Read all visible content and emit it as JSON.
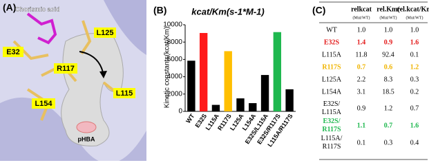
{
  "panel_a": {
    "label": "(A)",
    "labels": [
      "Chorismic acid",
      "L125",
      "E32",
      "R117",
      "L115",
      "L154",
      "pHBA"
    ]
  },
  "chart_data": {
    "type": "bar",
    "label": "(B)",
    "title": "kcat/Km(s-1*M-1)",
    "y_label": "Kinetic constants(kcat/Km)",
    "categories": [
      "WT",
      "E32S",
      "L115A",
      "R117S",
      "L125A",
      "L154A",
      "E32S/L115A",
      "E32S/R117S",
      "L115A/R117S"
    ],
    "values": [
      5850,
      9050,
      750,
      6950,
      1500,
      950,
      4200,
      9150,
      2550
    ],
    "colors": [
      "#000000",
      "#ff1a1a",
      "#000000",
      "#ffbf00",
      "#000000",
      "#000000",
      "#000000",
      "#1fb84f",
      "#000000"
    ],
    "ylim": [
      0,
      10000
    ],
    "yticks": [
      0,
      2000,
      4000,
      6000,
      8000,
      10000
    ]
  },
  "table": {
    "label": "(C)",
    "headers": [
      {
        "title": "relkcat",
        "sub": "(Mut/WT)"
      },
      {
        "title": "rel.Km(",
        "sub": "(Mut/WT)"
      },
      {
        "title": "rel.kcat/Km",
        "sub": "(Mut/WT)"
      }
    ],
    "rows": [
      {
        "cells": [
          "WT",
          "1.0",
          "1.0",
          "1.0"
        ],
        "color": "#000000"
      },
      {
        "cells": [
          "E32S",
          "1.4",
          "0.9",
          "1.6"
        ],
        "color": "#e31b1b"
      },
      {
        "cells": [
          "L115A",
          "11.8",
          "92.4",
          "0.1"
        ],
        "color": "#000000"
      },
      {
        "cells": [
          "R117S",
          "0.7",
          "0.6",
          "1.2"
        ],
        "color": "#f0b400"
      },
      {
        "cells": [
          "L125A",
          "2.2",
          "8.3",
          "0.3"
        ],
        "color": "#000000"
      },
      {
        "cells": [
          "L154A",
          "3.1",
          "18.5",
          "0.2"
        ],
        "color": "#000000"
      },
      {
        "cells": [
          "E32S/L115A",
          "0.9",
          "1.2",
          "0.7"
        ],
        "color": "#000000"
      },
      {
        "cells": [
          "E32S/R117S",
          "1.1",
          "0.7",
          "1.6"
        ],
        "color": "#1fb84f"
      },
      {
        "cells": [
          "L115A/R117S",
          "0.1",
          "0.3",
          "0.4"
        ],
        "color": "#000000"
      }
    ]
  }
}
